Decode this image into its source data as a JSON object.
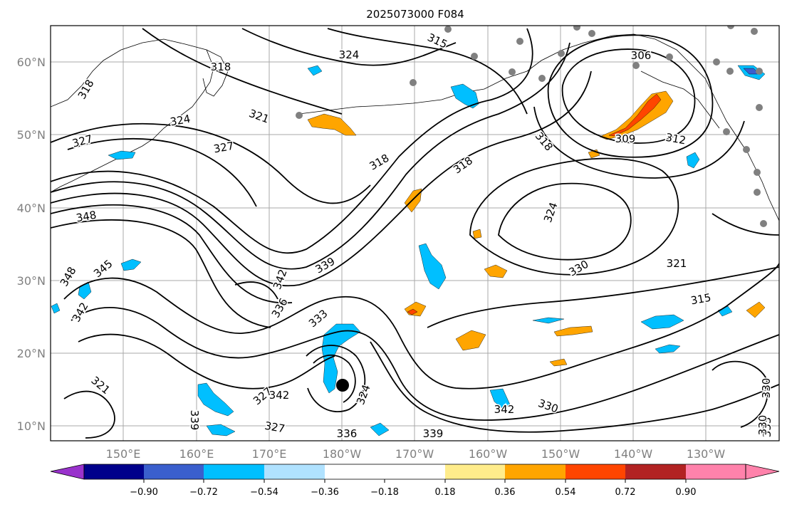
{
  "title": "2025073000 F084",
  "axes": {
    "lat_labels": [
      "10°N",
      "20°N",
      "30°N",
      "40°N",
      "50°N",
      "60°N"
    ],
    "lon_labels": [
      "150°E",
      "160°E",
      "170°E",
      "180°W",
      "170°W",
      "160°W",
      "150°W",
      "140°W",
      "130°W"
    ]
  },
  "contours": {
    "color": "#000000",
    "labels": [
      "324",
      "315",
      "306",
      "318",
      "318",
      "321",
      "324",
      "327",
      "327",
      "318",
      "318",
      "318",
      "309",
      "312",
      "324",
      "348",
      "327",
      "348",
      "345",
      "342",
      "339",
      "336",
      "333",
      "330",
      "321",
      "315",
      "321",
      "342",
      "327",
      "324",
      "339",
      "342",
      "330",
      "333",
      "339",
      "330",
      "342",
      "336",
      "330"
    ]
  },
  "colorbar": {
    "ticks": [
      "−0.90",
      "−0.72",
      "−0.54",
      "−0.36",
      "−0.18",
      "0.18",
      "0.36",
      "0.54",
      "0.72",
      "0.90"
    ],
    "colors": {
      "below": "#9932cc",
      "b1": "#00008b",
      "b2": "#3a5fcd",
      "b3": "#00bfff",
      "b4": "#b0e2ff",
      "neutral": "#ffffff",
      "p1": "#ffec8b",
      "p2": "#ffa500",
      "p3": "#ff4500",
      "p4": "#b22222",
      "above": "#ff82ab"
    }
  },
  "markers": {
    "station_color": "#808080",
    "storm_color": "#000000"
  }
}
